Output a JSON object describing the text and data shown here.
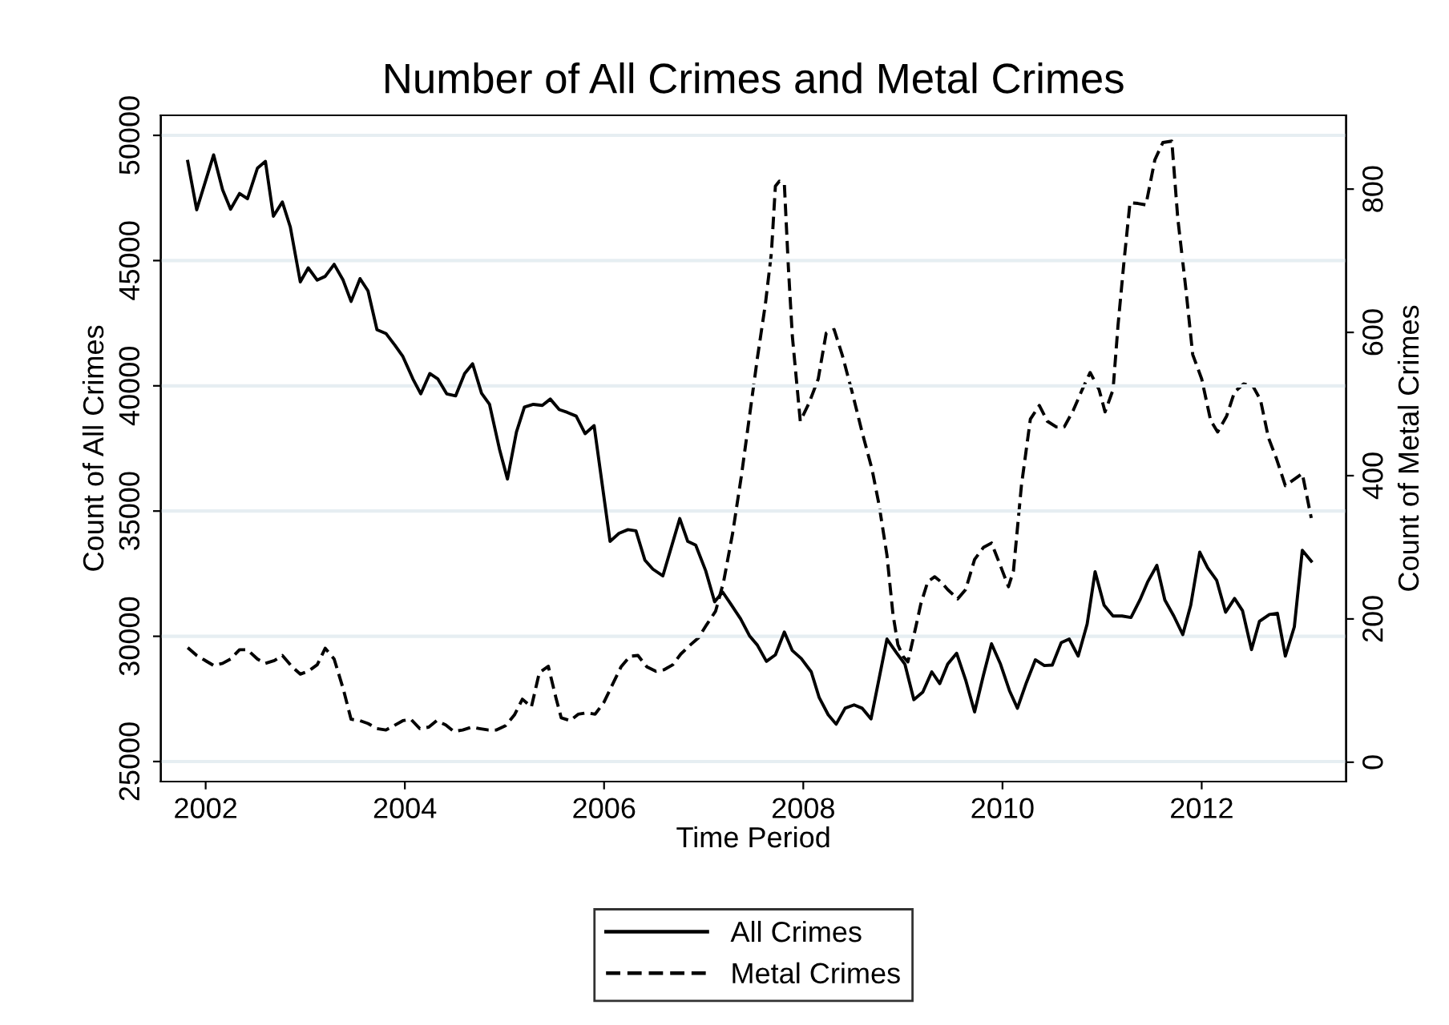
{
  "chart_data": {
    "type": "line",
    "title": "Number of All Crimes and Metal Crimes",
    "xlabel": "Time Period",
    "ylabel": "Count of All Crimes",
    "y2label": "Count of Metal Crimes",
    "xlim": [
      2001.55,
      2013.45
    ],
    "xticks": [
      2002,
      2004,
      2006,
      2008,
      2010,
      2012
    ],
    "ylim": [
      24200,
      50800
    ],
    "yticks": [
      25000,
      30000,
      35000,
      40000,
      45000,
      50000
    ],
    "y2lim": [
      -27,
      903
    ],
    "y2ticks": [
      0,
      200,
      400,
      600,
      800
    ],
    "grid": "y",
    "legend": "bottom",
    "marker": "none",
    "series": [
      {
        "name": "All Crimes",
        "color": "#000000",
        "line_style": "solid",
        "x": [
          2001.82,
          2001.91,
          2002.08,
          2002.17,
          2002.25,
          2002.34,
          2002.42,
          2002.52,
          2002.6,
          2002.68,
          2002.77,
          2002.85,
          2002.95,
          2003.03,
          2003.12,
          2003.2,
          2003.29,
          2003.38,
          2003.46,
          2003.55,
          2003.63,
          2003.72,
          2003.81,
          2003.9,
          2003.98,
          2004.08,
          2004.16,
          2004.25,
          2004.33,
          2004.42,
          2004.51,
          2004.6,
          2004.68,
          2004.77,
          2004.85,
          2004.95,
          2005.03,
          2005.12,
          2005.2,
          2005.29,
          2005.38,
          2005.46,
          2005.55,
          2005.63,
          2005.72,
          2005.81,
          2005.9,
          2006.06,
          2006.15,
          2006.24,
          2006.32,
          2006.41,
          2006.49,
          2006.59,
          2006.76,
          2006.84,
          2006.92,
          2007.02,
          2007.11,
          2007.19,
          2007.27,
          2007.37,
          2007.46,
          2007.54,
          2007.63,
          2007.72,
          2007.81,
          2007.89,
          2007.98,
          2008.08,
          2008.16,
          2008.25,
          2008.33,
          2008.42,
          2008.51,
          2008.59,
          2008.68,
          2008.84,
          2008.94,
          2009.02,
          2009.11,
          2009.2,
          2009.29,
          2009.37,
          2009.45,
          2009.54,
          2009.63,
          2009.72,
          2009.81,
          2009.89,
          2009.98,
          2010.07,
          2010.15,
          2010.24,
          2010.33,
          2010.42,
          2010.5,
          2010.59,
          2010.67,
          2010.76,
          2010.85,
          2010.93,
          2011.02,
          2011.11,
          2011.2,
          2011.29,
          2011.38,
          2011.46,
          2011.55,
          2011.63,
          2011.72,
          2011.81,
          2011.89,
          2011.98,
          2012.06,
          2012.15,
          2012.24,
          2012.33,
          2012.41,
          2012.5,
          2012.58,
          2012.68,
          2012.76,
          2012.84,
          2012.93,
          2013.01,
          2013.1
        ],
        "values": [
          48960,
          47030,
          49220,
          47830,
          47050,
          47680,
          47470,
          48690,
          48960,
          46770,
          47340,
          46340,
          44150,
          44710,
          44220,
          44370,
          44850,
          44220,
          43370,
          44280,
          43790,
          42240,
          42090,
          41620,
          41170,
          40280,
          39680,
          40490,
          40280,
          39680,
          39600,
          40490,
          40880,
          39700,
          39260,
          37470,
          36280,
          38150,
          39150,
          39260,
          39220,
          39470,
          39050,
          38940,
          38790,
          38090,
          38410,
          33790,
          34110,
          34260,
          34210,
          33040,
          32680,
          32410,
          34700,
          33790,
          33640,
          32620,
          31380,
          31770,
          31300,
          30700,
          30020,
          29640,
          29000,
          29260,
          30170,
          29430,
          29110,
          28580,
          27550,
          26870,
          26490,
          27130,
          27260,
          27130,
          26700,
          29890,
          29320,
          28890,
          27470,
          27770,
          28580,
          28110,
          28890,
          29320,
          28260,
          26980,
          28470,
          29700,
          28890,
          27830,
          27130,
          28150,
          29060,
          28830,
          28850,
          29750,
          29890,
          29210,
          30490,
          32580,
          31240,
          30810,
          30810,
          30750,
          31450,
          32190,
          32830,
          31450,
          30810,
          30070,
          31240,
          33360,
          32730,
          32240,
          30960,
          31510,
          31020,
          29470,
          30600,
          30870,
          30920,
          29210,
          30380,
          33430,
          33000
        ]
      },
      {
        "name": "Metal Crimes",
        "color": "#000000",
        "line_style": "dashed",
        "axis": "y2",
        "x": [
          2001.82,
          2001.91,
          2002.08,
          2002.17,
          2002.25,
          2002.34,
          2002.42,
          2002.52,
          2002.6,
          2002.69,
          2002.77,
          2002.87,
          2002.95,
          2003.03,
          2003.12,
          2003.2,
          2003.29,
          2003.38,
          2003.46,
          2003.55,
          2003.63,
          2003.72,
          2003.81,
          2003.89,
          2003.98,
          2004.06,
          2004.15,
          2004.24,
          2004.32,
          2004.41,
          2004.49,
          2004.58,
          2004.67,
          2004.75,
          2004.84,
          2004.92,
          2005.01,
          2005.1,
          2005.18,
          2005.27,
          2005.35,
          2005.44,
          2005.52,
          2005.57,
          2005.66,
          2005.74,
          2005.83,
          2005.91,
          2006.0,
          2006.09,
          2006.17,
          2006.26,
          2006.34,
          2006.43,
          2006.52,
          2006.6,
          2006.69,
          2006.77,
          2006.86,
          2006.95,
          2007.03,
          2007.12,
          2007.2,
          2007.29,
          2007.38,
          2007.46,
          2007.54,
          2007.62,
          2007.68,
          2007.72,
          2007.76,
          2007.81,
          2007.85,
          2007.89,
          2007.97,
          2008.06,
          2008.15,
          2008.23,
          2008.31,
          2008.39,
          2008.49,
          2008.59,
          2008.69,
          2008.76,
          2008.84,
          2008.9,
          2008.95,
          2009.0,
          2009.05,
          2009.13,
          2009.18,
          2009.25,
          2009.32,
          2009.38,
          2009.45,
          2009.55,
          2009.63,
          2009.72,
          2009.81,
          2009.89,
          2009.98,
          2010.06,
          2010.11,
          2010.19,
          2010.28,
          2010.37,
          2010.45,
          2010.54,
          2010.62,
          2010.71,
          2010.8,
          2010.88,
          2010.97,
          2011.03,
          2011.11,
          2011.16,
          2011.22,
          2011.28,
          2011.36,
          2011.44,
          2011.53,
          2011.61,
          2011.7,
          2011.76,
          2011.84,
          2011.91,
          2012.0,
          2012.09,
          2012.16,
          2012.25,
          2012.33,
          2012.42,
          2012.51,
          2012.59,
          2012.67,
          2012.75,
          2012.84,
          2012.92,
          2013.01,
          2013.1
        ],
        "values": [
          160,
          149,
          135,
          138,
          144,
          157,
          157,
          144,
          138,
          142,
          149,
          133,
          123,
          127,
          136,
          159,
          144,
          103,
          60,
          58,
          54,
          47,
          45,
          51,
          58,
          60,
          47,
          49,
          58,
          52,
          43,
          45,
          49,
          47,
          45,
          45,
          51,
          66,
          88,
          77,
          125,
          134,
          88,
          62,
          58,
          67,
          69,
          67,
          84,
          110,
          133,
          148,
          149,
          133,
          127,
          129,
          136,
          151,
          163,
          174,
          192,
          211,
          252,
          319,
          401,
          483,
          565,
          640,
          711,
          804,
          811,
          807,
          692,
          595,
          476,
          502,
          535,
          599,
          604,
          569,
          517,
          461,
          409,
          360,
          289,
          207,
          164,
          148,
          140,
          189,
          221,
          252,
          259,
          252,
          241,
          228,
          241,
          283,
          300,
          306,
          274,
          245,
          267,
          386,
          479,
          498,
          476,
          468,
          468,
          491,
          520,
          544,
          520,
          489,
          520,
          610,
          699,
          781,
          780,
          778,
          841,
          865,
          867,
          759,
          662,
          569,
          535,
          477,
          461,
          483,
          517,
          528,
          526,
          506,
          453,
          424,
          386,
          394,
          403,
          341
        ]
      }
    ]
  }
}
